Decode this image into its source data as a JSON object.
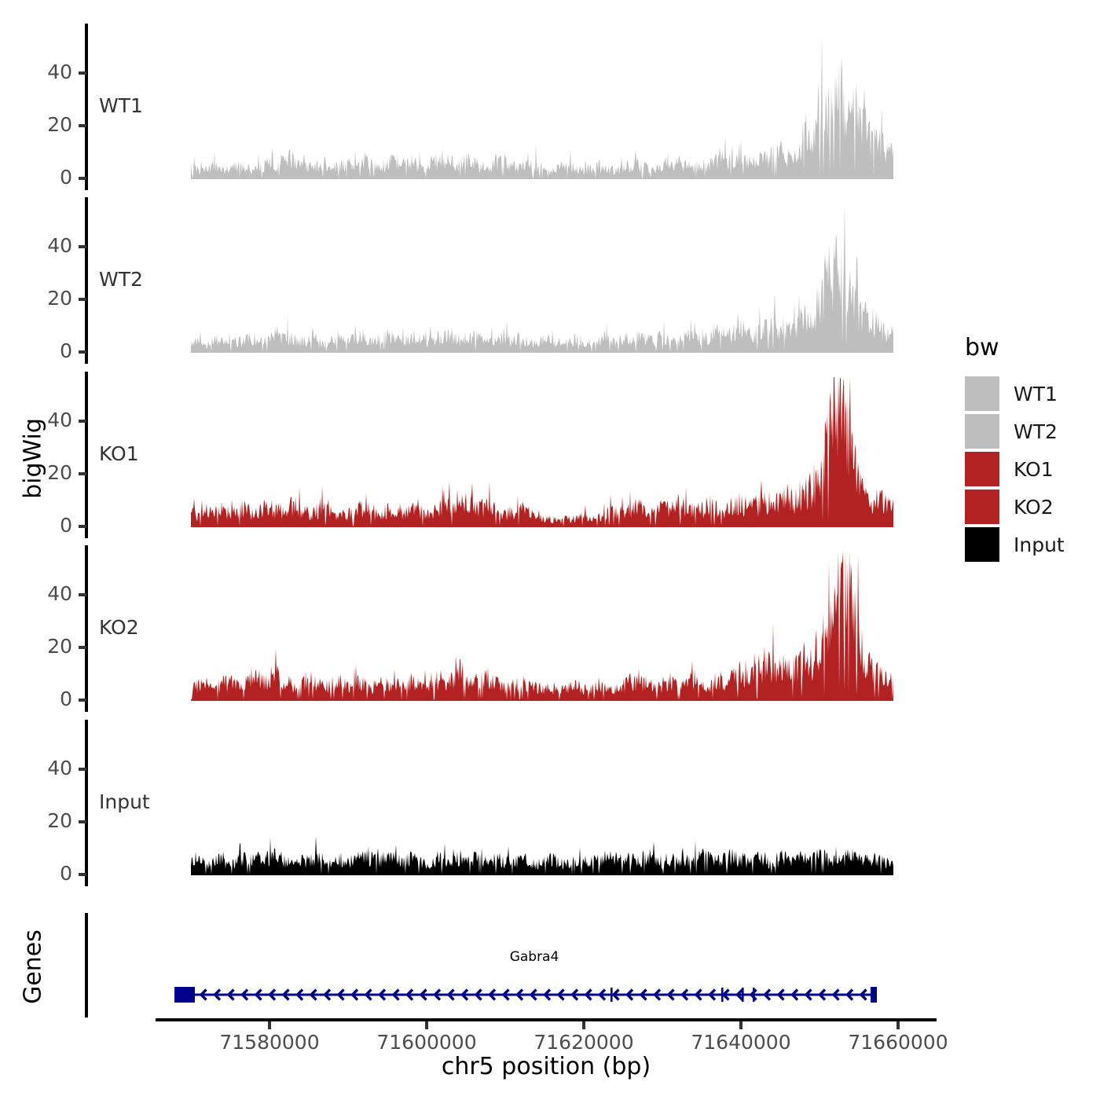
{
  "labels": {
    "y_axis_coverage": "bigWig",
    "y_axis_genes": "Genes"
  },
  "yaxis": {
    "tick_labels": [
      "40",
      "20",
      "0"
    ]
  },
  "xaxis": {
    "title": "chr5 position (bp)",
    "tick_labels": [
      "71580000",
      "71600000",
      "71620000",
      "71640000",
      "71660000"
    ]
  },
  "legend": {
    "title": "bw",
    "entries": [
      {
        "label": "WT1",
        "color": "#BEBEBE"
      },
      {
        "label": "WT2",
        "color": "#BEBEBE"
      },
      {
        "label": "KO1",
        "color": "#B22222"
      },
      {
        "label": "KO2",
        "color": "#B22222"
      },
      {
        "label": "Input",
        "color": "#000000"
      }
    ]
  },
  "chart_data": {
    "type": "area",
    "title": "",
    "xlabel": "chr5 position (bp)",
    "ylabel": "bigWig",
    "x_domain_bp": [
      71565500,
      71664900
    ],
    "coverage_x_start_bp": 71570000,
    "coverage_x_step_bp": 1000,
    "coverage_x_end_bp": 71659400,
    "ylim": [
      0,
      59
    ],
    "yticks": [
      0,
      20,
      40
    ],
    "xticks": [
      71580000,
      71600000,
      71620000,
      71640000,
      71660000
    ],
    "grid": false,
    "legend_position": "right",
    "series": [
      {
        "name": "WT1",
        "color": "#BEBEBE",
        "values": [
          4,
          3,
          4,
          5,
          3,
          4,
          5,
          4,
          3,
          5,
          6,
          5,
          8,
          7,
          5,
          4,
          5,
          6,
          4,
          5,
          5,
          6,
          7,
          5,
          4,
          6,
          7,
          5,
          6,
          5,
          4,
          6,
          8,
          6,
          5,
          7,
          6,
          5,
          4,
          6,
          7,
          5,
          4,
          5,
          6,
          4,
          3,
          4,
          5,
          4,
          3,
          4,
          5,
          4,
          3,
          4,
          5,
          6,
          4,
          3,
          5,
          4,
          6,
          5,
          4,
          6,
          5,
          7,
          8,
          6,
          10,
          7,
          6,
          8,
          9,
          10,
          8,
          9,
          15,
          12,
          22,
          26,
          32,
          30,
          24,
          20,
          17,
          14,
          12,
          9
        ]
      },
      {
        "name": "WT2",
        "color": "#BEBEBE",
        "values": [
          3,
          4,
          3,
          5,
          4,
          3,
          4,
          5,
          6,
          4,
          5,
          7,
          6,
          5,
          4,
          5,
          4,
          3,
          5,
          6,
          4,
          5,
          6,
          4,
          5,
          6,
          5,
          4,
          6,
          5,
          4,
          5,
          6,
          7,
          5,
          4,
          6,
          5,
          4,
          5,
          6,
          4,
          5,
          4,
          3,
          5,
          4,
          3,
          4,
          5,
          4,
          3,
          4,
          5,
          4,
          5,
          4,
          6,
          5,
          4,
          6,
          5,
          4,
          6,
          7,
          5,
          6,
          8,
          6,
          7,
          9,
          6,
          7,
          8,
          10,
          9,
          8,
          10,
          12,
          14,
          18,
          28,
          30,
          26,
          20,
          16,
          13,
          11,
          9,
          7
        ]
      },
      {
        "name": "KO1",
        "color": "#B22222",
        "values": [
          5,
          4,
          6,
          5,
          7,
          5,
          6,
          7,
          5,
          6,
          8,
          6,
          7,
          8,
          6,
          5,
          6,
          7,
          5,
          4,
          5,
          6,
          7,
          6,
          5,
          6,
          7,
          5,
          6,
          7,
          5,
          6,
          7,
          8,
          6,
          10,
          9,
          7,
          8,
          6,
          5,
          6,
          7,
          5,
          4,
          3,
          3,
          2,
          3,
          3,
          4,
          3,
          4,
          5,
          6,
          5,
          7,
          9,
          6,
          5,
          7,
          6,
          8,
          7,
          6,
          7,
          8,
          7,
          6,
          8,
          9,
          7,
          8,
          9,
          10,
          10,
          11,
          10,
          12,
          14,
          18,
          30,
          48,
          44,
          28,
          16,
          12,
          10,
          9,
          8
        ]
      },
      {
        "name": "KO2",
        "color": "#B22222",
        "values": [
          5,
          6,
          4,
          5,
          6,
          7,
          5,
          8,
          9,
          7,
          8,
          9,
          7,
          6,
          7,
          8,
          6,
          5,
          6,
          7,
          5,
          6,
          7,
          5,
          6,
          7,
          6,
          5,
          7,
          6,
          5,
          6,
          8,
          7,
          13,
          8,
          6,
          9,
          8,
          6,
          5,
          6,
          7,
          6,
          5,
          4,
          5,
          4,
          5,
          6,
          4,
          5,
          6,
          5,
          4,
          6,
          7,
          8,
          6,
          5,
          6,
          7,
          5,
          6,
          8,
          7,
          6,
          8,
          7,
          9,
          10,
          8,
          11,
          12,
          13,
          12,
          11,
          12,
          15,
          14,
          20,
          24,
          30,
          42,
          34,
          22,
          14,
          11,
          10,
          8
        ]
      },
      {
        "name": "Input",
        "color": "#000000",
        "values": [
          4,
          5,
          4,
          6,
          5,
          4,
          5,
          6,
          7,
          5,
          6,
          7,
          5,
          4,
          6,
          5,
          7,
          5,
          4,
          6,
          5,
          6,
          7,
          6,
          5,
          7,
          6,
          5,
          6,
          5,
          4,
          6,
          5,
          7,
          6,
          5,
          6,
          7,
          5,
          6,
          5,
          4,
          6,
          5,
          4,
          5,
          6,
          4,
          5,
          6,
          5,
          6,
          5,
          7,
          6,
          5,
          6,
          5,
          7,
          6,
          5,
          6,
          7,
          5,
          6,
          7,
          6,
          5,
          6,
          7,
          6,
          5,
          7,
          6,
          5,
          6,
          7,
          6,
          5,
          6,
          7,
          6,
          5,
          6,
          7,
          6,
          5,
          6,
          5,
          4
        ]
      }
    ],
    "genes": [
      {
        "name": "Gabra4",
        "strand": "-",
        "color": "#00008B",
        "start_bp": 71567900,
        "end_bp": 71657300,
        "exons": [
          {
            "start": 71567900,
            "end": 71570500
          },
          {
            "start": 71623400,
            "end": 71623650
          },
          {
            "start": 71637500,
            "end": 71637750
          },
          {
            "start": 71640100,
            "end": 71640350
          },
          {
            "start": 71641500,
            "end": 71641750
          },
          {
            "start": 71656500,
            "end": 71657300
          }
        ]
      }
    ]
  }
}
